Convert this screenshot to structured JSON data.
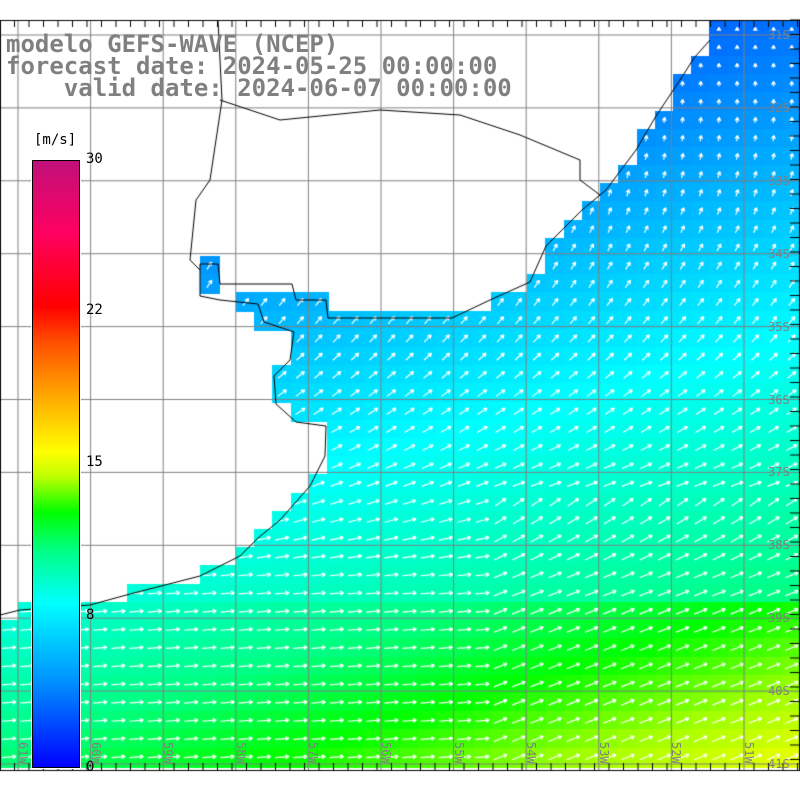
{
  "header": {
    "line1": "modelo GEFS-WAVE (NCEP)",
    "line2": "forecast date: 2024-05-25 00:00:00",
    "line3": "    valid date: 2024-06-07 00:00:00"
  },
  "colorbar": {
    "unit": "[m/s]",
    "labels": [
      "30",
      "22",
      "15",
      "8",
      "0"
    ],
    "range": [
      0,
      30
    ]
  },
  "lat_labels": [
    "31S",
    "32S",
    "33S",
    "34S",
    "35S",
    "36S",
    "37S",
    "38S",
    "39S",
    "40S",
    "41S"
  ],
  "lon_labels": [
    "61W",
    "60W",
    "59W",
    "58W",
    "57W",
    "56W",
    "55W",
    "54W",
    "53W",
    "52W",
    "51W"
  ],
  "colors": {
    "land": "#ffffff",
    "grid": "#808080",
    "coast": "#000000"
  }
}
